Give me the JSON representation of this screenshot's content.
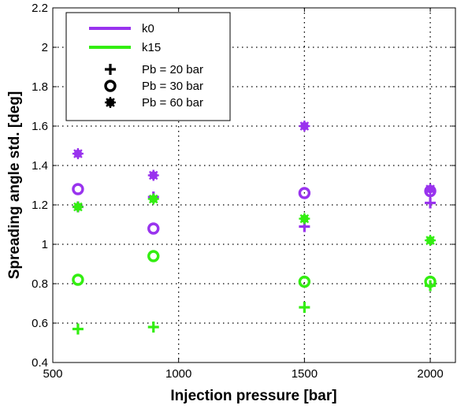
{
  "chart_data": {
    "type": "scatter",
    "xlabel": "Injection pressure [bar]",
    "ylabel": "Spreading angle std. [deg]",
    "xlim": [
      500,
      2100
    ],
    "ylim": [
      0.4,
      2.2
    ],
    "xticks": [
      500,
      1000,
      1500,
      2000
    ],
    "yticks": [
      0.4,
      0.6,
      0.8,
      1,
      1.2,
      1.4,
      1.6,
      1.8,
      2,
      2.2
    ],
    "grid": true,
    "grid_style": "dotted",
    "legend_placement": "top-left",
    "fuels": [
      {
        "name": "k0",
        "color": "#9933ee"
      },
      {
        "name": "k15",
        "color": "#33ee11"
      }
    ],
    "back_pressures": [
      {
        "name": "Pb = 20 bar",
        "marker": "plus"
      },
      {
        "name": "Pb = 30 bar",
        "marker": "circle"
      },
      {
        "name": "Pb = 60 bar",
        "marker": "asterisk"
      }
    ],
    "series": [
      {
        "fuel": "k0",
        "pb": "Pb = 20 bar",
        "x": [
          600,
          900,
          1500,
          2000
        ],
        "y": [
          1.19,
          1.24,
          1.09,
          1.21
        ]
      },
      {
        "fuel": "k0",
        "pb": "Pb = 30 bar",
        "x": [
          600,
          900,
          1500,
          2000
        ],
        "y": [
          1.28,
          1.08,
          1.26,
          1.27
        ]
      },
      {
        "fuel": "k0",
        "pb": "Pb = 60 bar",
        "x": [
          600,
          900,
          1500,
          2000
        ],
        "y": [
          1.46,
          1.35,
          1.6,
          1.28
        ]
      },
      {
        "fuel": "k15",
        "pb": "Pb = 20 bar",
        "x": [
          600,
          900,
          1500,
          2000
        ],
        "y": [
          0.57,
          0.58,
          0.68,
          0.79
        ]
      },
      {
        "fuel": "k15",
        "pb": "Pb = 30 bar",
        "x": [
          600,
          900,
          1500,
          2000
        ],
        "y": [
          0.82,
          0.94,
          0.81,
          0.81
        ]
      },
      {
        "fuel": "k15",
        "pb": "Pb = 60 bar",
        "x": [
          600,
          900,
          1500,
          2000
        ],
        "y": [
          1.19,
          1.23,
          1.13,
          1.02
        ]
      }
    ]
  }
}
